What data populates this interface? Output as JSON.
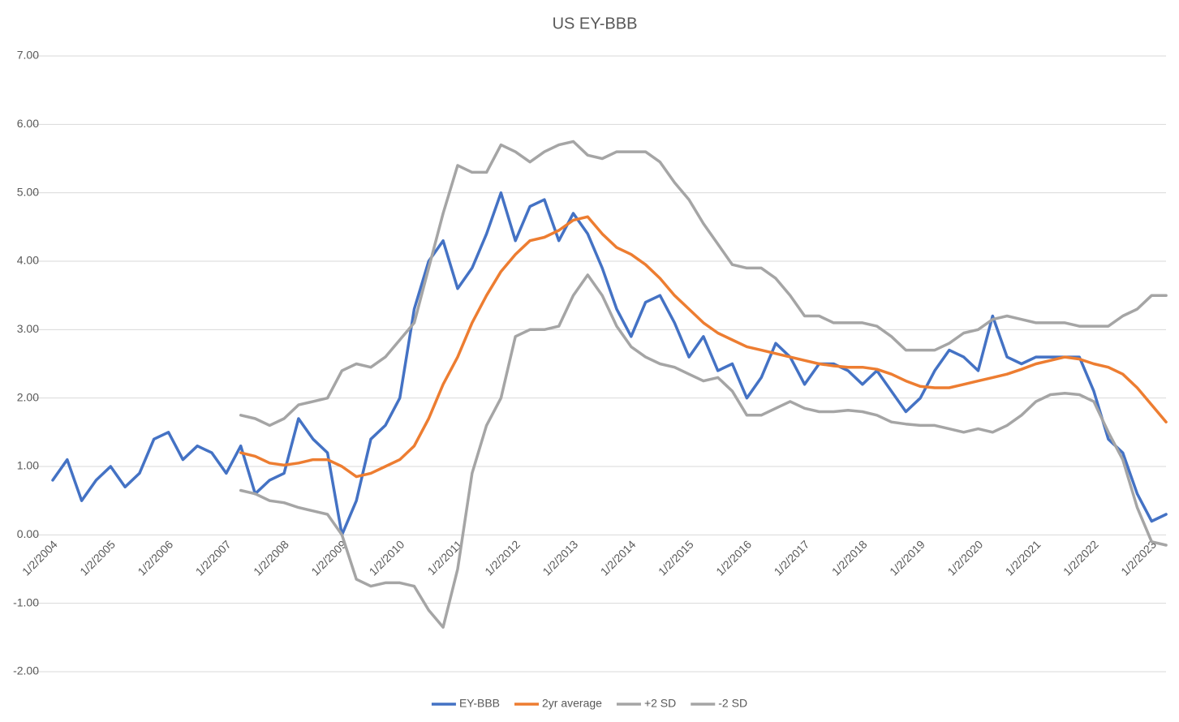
{
  "chart_data": {
    "type": "line",
    "title": "US EY-BBB",
    "categories": [
      "1/2/2004",
      null,
      null,
      null,
      "1/2/2005",
      null,
      null,
      null,
      "1/2/2006",
      null,
      null,
      null,
      "1/2/2007",
      null,
      null,
      null,
      "1/2/2008",
      null,
      null,
      null,
      "1/2/2009",
      null,
      null,
      null,
      "1/2/2010",
      null,
      null,
      null,
      "1/2/2011",
      null,
      null,
      null,
      "1/2/2012",
      null,
      null,
      null,
      "1/2/2013",
      null,
      null,
      null,
      "1/2/2014",
      null,
      null,
      null,
      "1/2/2015",
      null,
      null,
      null,
      "1/2/2016",
      null,
      null,
      null,
      "1/2/2017",
      null,
      null,
      null,
      "1/2/2018",
      null,
      null,
      null,
      "1/2/2019",
      null,
      null,
      null,
      "1/2/2020",
      null,
      null,
      null,
      "1/2/2021",
      null,
      null,
      null,
      "1/2/2022",
      null,
      null,
      null,
      "1/2/2023",
      null
    ],
    "series": [
      {
        "name": "EY-BBB",
        "color": "#4472c4",
        "values": [
          0.8,
          1.1,
          0.5,
          0.8,
          1.0,
          0.7,
          0.9,
          1.4,
          1.5,
          1.1,
          1.3,
          1.2,
          0.9,
          1.3,
          0.6,
          0.8,
          0.9,
          1.7,
          1.4,
          1.2,
          0.0,
          0.5,
          1.4,
          1.6,
          2.0,
          3.3,
          4.0,
          4.3,
          3.6,
          3.9,
          4.4,
          5.0,
          4.3,
          4.8,
          4.9,
          4.3,
          4.7,
          4.4,
          3.9,
          3.3,
          2.9,
          3.4,
          3.5,
          3.1,
          2.6,
          2.9,
          2.4,
          2.5,
          2.0,
          2.3,
          2.8,
          2.6,
          2.2,
          2.5,
          2.5,
          2.4,
          2.2,
          2.4,
          2.1,
          1.8,
          2.0,
          2.4,
          2.7,
          2.6,
          2.4,
          3.2,
          2.6,
          2.5,
          2.6,
          2.6,
          2.6,
          2.6,
          2.1,
          1.4,
          1.2,
          0.6,
          0.2,
          0.3
        ]
      },
      {
        "name": "2yr average",
        "color": "#ed7d31",
        "values": [
          null,
          null,
          null,
          null,
          null,
          null,
          null,
          null,
          null,
          null,
          null,
          null,
          null,
          1.2,
          1.15,
          1.05,
          1.02,
          1.05,
          1.1,
          1.1,
          1.0,
          0.85,
          0.9,
          1.0,
          1.1,
          1.3,
          1.7,
          2.2,
          2.6,
          3.1,
          3.5,
          3.85,
          4.1,
          4.3,
          4.35,
          4.45,
          4.6,
          4.65,
          4.4,
          4.2,
          4.1,
          3.95,
          3.75,
          3.5,
          3.3,
          3.1,
          2.95,
          2.85,
          2.75,
          2.7,
          2.65,
          2.6,
          2.55,
          2.5,
          2.47,
          2.45,
          2.45,
          2.42,
          2.35,
          2.25,
          2.17,
          2.15,
          2.15,
          2.2,
          2.25,
          2.3,
          2.35,
          2.42,
          2.5,
          2.55,
          2.6,
          2.57,
          2.5,
          2.45,
          2.35,
          2.15,
          1.9,
          1.65
        ]
      },
      {
        "name": "+2 SD",
        "color": "#a5a5a5",
        "values": [
          null,
          null,
          null,
          null,
          null,
          null,
          null,
          null,
          null,
          null,
          null,
          null,
          null,
          1.75,
          1.7,
          1.6,
          1.7,
          1.9,
          1.95,
          2.0,
          2.4,
          2.5,
          2.45,
          2.6,
          2.85,
          3.1,
          3.9,
          4.7,
          5.4,
          5.3,
          5.3,
          5.7,
          5.6,
          5.45,
          5.6,
          5.7,
          5.75,
          5.55,
          5.5,
          5.6,
          5.6,
          5.6,
          5.45,
          5.15,
          4.9,
          4.55,
          4.25,
          3.95,
          3.9,
          3.9,
          3.75,
          3.5,
          3.2,
          3.2,
          3.1,
          3.1,
          3.1,
          3.05,
          2.9,
          2.7,
          2.7,
          2.7,
          2.8,
          2.95,
          3.0,
          3.15,
          3.2,
          3.15,
          3.1,
          3.1,
          3.1,
          3.05,
          3.05,
          3.05,
          3.2,
          3.3,
          3.5,
          3.5
        ]
      },
      {
        "name": "-2 SD",
        "color": "#a5a5a5",
        "values": [
          null,
          null,
          null,
          null,
          null,
          null,
          null,
          null,
          null,
          null,
          null,
          null,
          null,
          0.65,
          0.6,
          0.5,
          0.47,
          0.4,
          0.35,
          0.3,
          0.0,
          -0.65,
          -0.75,
          -0.7,
          -0.7,
          -0.75,
          -1.1,
          -1.35,
          -0.5,
          0.9,
          1.6,
          2.0,
          2.9,
          3.0,
          3.0,
          3.05,
          3.5,
          3.8,
          3.5,
          3.05,
          2.75,
          2.6,
          2.5,
          2.45,
          2.35,
          2.25,
          2.3,
          2.1,
          1.75,
          1.75,
          1.85,
          1.95,
          1.85,
          1.8,
          1.8,
          1.82,
          1.8,
          1.75,
          1.65,
          1.62,
          1.6,
          1.6,
          1.55,
          1.5,
          1.55,
          1.5,
          1.6,
          1.75,
          1.95,
          2.05,
          2.07,
          2.05,
          1.95,
          1.5,
          1.1,
          0.4,
          -0.1,
          -0.15
        ]
      }
    ],
    "ylim": [
      -2,
      7
    ],
    "yticks": [
      {
        "value": -2,
        "label": "-2.00"
      },
      {
        "value": -1,
        "label": "-1.00"
      },
      {
        "value": 0,
        "label": "0.00"
      },
      {
        "value": 1,
        "label": "1.00"
      },
      {
        "value": 2,
        "label": "2.00"
      },
      {
        "value": 3,
        "label": "3.00"
      },
      {
        "value": 4,
        "label": "4.00"
      },
      {
        "value": 5,
        "label": "5.00"
      },
      {
        "value": 6,
        "label": "6.00"
      },
      {
        "value": 7,
        "label": "7.00"
      }
    ],
    "grid": true,
    "legend": "bottom"
  }
}
